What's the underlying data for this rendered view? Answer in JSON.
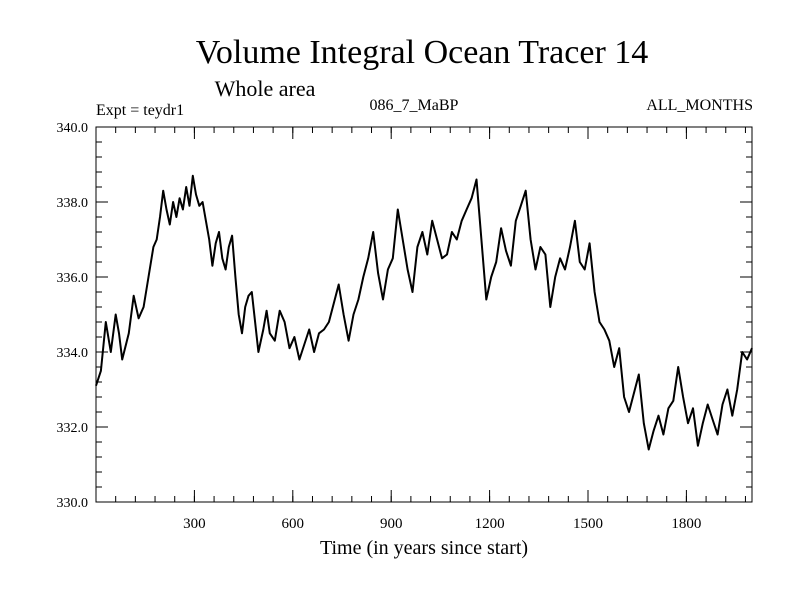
{
  "chart_data": {
    "type": "line",
    "title": "Volume Integral Ocean Tracer 14",
    "subtitle": "Whole area",
    "annotations": {
      "left": "Expt = teydr1",
      "center": "086_7_MaBP",
      "right": "ALL_MONTHS"
    },
    "xlabel": "Time (in years since start)",
    "ylabel": "",
    "xlim": [
      0,
      2000
    ],
    "ylim": [
      330.0,
      340.0
    ],
    "x_ticks": [
      300,
      600,
      900,
      1200,
      1500,
      1800
    ],
    "x_tick_labels": [
      "300",
      "600",
      "900",
      "1200",
      "1500",
      "1800"
    ],
    "y_ticks": [
      330,
      332,
      334,
      336,
      338,
      340
    ],
    "y_tick_labels": [
      "330.0",
      "332.0",
      "334.0",
      "336.0",
      "338.0",
      "340.0"
    ],
    "grid": false,
    "series": [
      {
        "x": [
          0,
          15,
          30,
          45,
          60,
          70,
          80,
          100,
          115,
          130,
          145,
          160,
          175,
          185,
          195,
          205,
          215,
          225,
          235,
          245,
          255,
          265,
          275,
          285,
          295,
          305,
          315,
          325,
          335,
          345,
          355,
          365,
          375,
          385,
          395,
          405,
          415,
          425,
          435,
          445,
          455,
          465,
          475,
          485,
          495,
          510,
          520,
          530,
          545,
          560,
          575,
          590,
          605,
          620,
          635,
          650,
          665,
          680,
          695,
          710,
          725,
          740,
          755,
          770,
          785,
          800,
          815,
          830,
          845,
          860,
          875,
          890,
          905,
          920,
          935,
          950,
          965,
          980,
          995,
          1010,
          1025,
          1040,
          1055,
          1070,
          1085,
          1100,
          1115,
          1130,
          1145,
          1160,
          1175,
          1190,
          1205,
          1220,
          1235,
          1250,
          1265,
          1280,
          1295,
          1310,
          1325,
          1340,
          1355,
          1370,
          1385,
          1400,
          1415,
          1430,
          1445,
          1460,
          1475,
          1490,
          1505,
          1520,
          1535,
          1550,
          1565,
          1580,
          1595,
          1610,
          1625,
          1640,
          1655,
          1670,
          1685,
          1700,
          1715,
          1730,
          1745,
          1760,
          1775,
          1790,
          1805,
          1820,
          1835,
          1850,
          1865,
          1880,
          1895,
          1910,
          1925,
          1940,
          1955,
          1970,
          1985,
          2000
        ],
        "values": [
          333.1,
          333.5,
          334.8,
          334.0,
          335.0,
          334.5,
          333.8,
          334.5,
          335.5,
          334.9,
          335.2,
          336.0,
          336.8,
          337.0,
          337.6,
          338.3,
          337.8,
          337.4,
          338.0,
          337.6,
          338.1,
          337.8,
          338.4,
          337.9,
          338.7,
          338.2,
          337.9,
          338.0,
          337.5,
          337.0,
          336.3,
          336.9,
          337.2,
          336.5,
          336.2,
          336.8,
          337.1,
          336.0,
          335.0,
          334.5,
          335.2,
          335.5,
          335.6,
          334.8,
          334.0,
          334.6,
          335.1,
          334.5,
          334.3,
          335.1,
          334.8,
          334.1,
          334.4,
          333.8,
          334.2,
          334.6,
          334.0,
          334.5,
          334.6,
          334.8,
          335.3,
          335.8,
          335.0,
          334.3,
          335.0,
          335.4,
          336.0,
          336.5,
          337.2,
          336.1,
          335.4,
          336.2,
          336.5,
          337.8,
          337.0,
          336.2,
          335.6,
          336.8,
          337.2,
          336.6,
          337.5,
          337.0,
          336.5,
          336.6,
          337.2,
          337.0,
          337.5,
          337.8,
          338.1,
          338.6,
          337.0,
          335.4,
          336.0,
          336.4,
          337.3,
          336.7,
          336.3,
          337.5,
          337.9,
          338.3,
          337.0,
          336.2,
          336.8,
          336.6,
          335.2,
          336.0,
          336.5,
          336.2,
          336.8,
          337.5,
          336.4,
          336.2,
          336.9,
          335.6,
          334.8,
          334.6,
          334.3,
          333.6,
          334.1,
          332.8,
          332.4,
          332.9,
          333.4,
          332.1,
          331.4,
          331.9,
          332.3,
          331.8,
          332.5,
          332.7,
          333.6,
          332.8,
          332.1,
          332.5,
          331.5,
          332.1,
          332.6,
          332.2,
          331.8,
          332.6,
          333.0,
          332.3,
          333.0,
          334.0,
          333.8,
          334.1
        ]
      }
    ]
  }
}
